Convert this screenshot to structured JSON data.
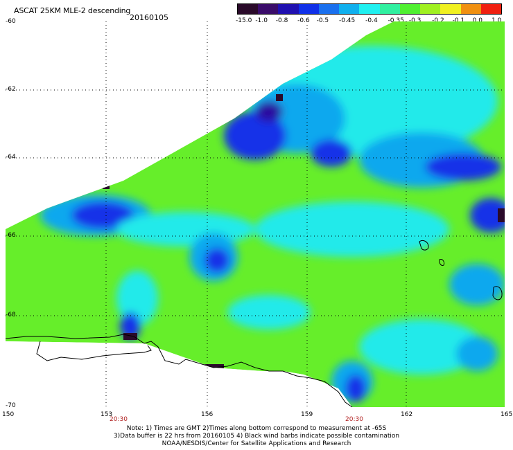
{
  "header": {
    "title": "ASCAT 25KM MLE-2 descending",
    "date": "20160105"
  },
  "colorbar": {
    "labels": [
      "-15.0",
      "-1.0",
      "-0.8",
      "-0.6",
      "-0.5",
      "-0.45",
      "-0.4",
      "-0.35",
      "-0.3",
      "-0.2",
      "-0.1",
      "0.0",
      "1.0"
    ],
    "colors": [
      "#2a0a2a",
      "#3a0c6a",
      "#2010b0",
      "#1030e8",
      "#1a70ee",
      "#10b0ee",
      "#20f0f0",
      "#30f0a0",
      "#50f030",
      "#a0f020",
      "#f0f020",
      "#f09010",
      "#f02010"
    ]
  },
  "map": {
    "lat_labels": [
      "-60",
      "-62",
      "-64",
      "-66",
      "-68",
      "-70"
    ],
    "lon_labels": [
      "150",
      "153",
      "156",
      "159",
      "162",
      "165"
    ],
    "time_labels": [
      "20:30",
      "20:30"
    ],
    "palette": {
      "ocean": "#66ee2a",
      "cyan": "#20eaea",
      "aqua": "#10a8ee",
      "blue": "#1530e8",
      "deep": "#2a08a0",
      "dark": "#2a0a2a",
      "land": "#ffffff",
      "coast": "#000000",
      "grid": "#000000"
    }
  },
  "footnote": {
    "line1": "Note: 1) Times are GMT 2)Times along bottom correspond to measurement at -65S",
    "line2": "3)Data buffer is 22 hrs from 20160105 4) Black wind barbs indicate possible contamination",
    "line3": "NOAA/NESDIS/Center for Satellite Applications and Research"
  }
}
